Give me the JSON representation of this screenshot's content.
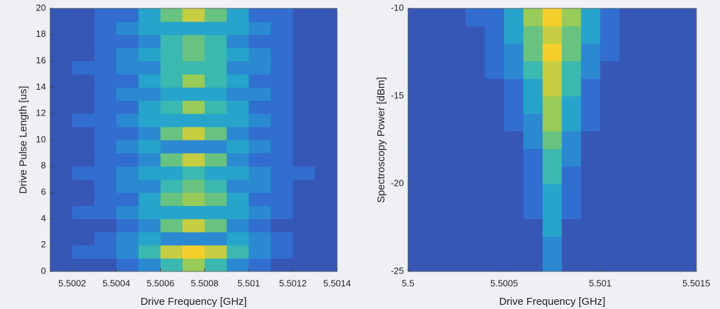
{
  "chart_data": [
    {
      "type": "heatmap",
      "xlabel": "Drive Frequency [GHz]",
      "ylabel": "Drive Pulse Length [us]",
      "xlim": [
        5.5001,
        5.5014
      ],
      "ylim": [
        0,
        20
      ],
      "xticks": [
        5.5002,
        5.5004,
        5.5006,
        5.5008,
        5.501,
        5.5012,
        5.5014
      ],
      "yticks": [
        0,
        2,
        4,
        6,
        8,
        10,
        12,
        14,
        16,
        18,
        20
      ],
      "zlim": [
        0,
        9
      ],
      "colormap": [
        "#3e3f9c",
        "#2f74d6",
        "#24b2c8",
        "#8ccb5c",
        "#f4cf2c"
      ],
      "z": [
        [
          1,
          1,
          1,
          2,
          3,
          5,
          7,
          5,
          3,
          2,
          1,
          1,
          1
        ],
        [
          1,
          2,
          2,
          3,
          5,
          8,
          9,
          8,
          5,
          3,
          2,
          1,
          1
        ],
        [
          1,
          1,
          2,
          3,
          4,
          3,
          3,
          3,
          4,
          3,
          2,
          1,
          1
        ],
        [
          1,
          1,
          1,
          2,
          3,
          6,
          8,
          6,
          3,
          2,
          1,
          1,
          1
        ],
        [
          1,
          2,
          2,
          3,
          4,
          4,
          4,
          4,
          4,
          3,
          2,
          1,
          1
        ],
        [
          1,
          1,
          2,
          2,
          4,
          6,
          7,
          6,
          4,
          2,
          2,
          1,
          1
        ],
        [
          1,
          1,
          2,
          3,
          3,
          5,
          6,
          5,
          3,
          3,
          2,
          1,
          1
        ],
        [
          1,
          2,
          2,
          3,
          4,
          4,
          5,
          4,
          4,
          3,
          2,
          2,
          1
        ],
        [
          1,
          1,
          2,
          2,
          3,
          6,
          8,
          6,
          3,
          2,
          2,
          1,
          1
        ],
        [
          1,
          1,
          2,
          3,
          4,
          3,
          3,
          3,
          4,
          3,
          2,
          1,
          1
        ],
        [
          1,
          1,
          2,
          2,
          3,
          6,
          8,
          6,
          3,
          2,
          2,
          1,
          1
        ],
        [
          1,
          2,
          2,
          3,
          4,
          4,
          4,
          4,
          4,
          3,
          2,
          1,
          1
        ],
        [
          1,
          1,
          2,
          2,
          4,
          5,
          7,
          5,
          4,
          2,
          2,
          1,
          1
        ],
        [
          1,
          1,
          2,
          3,
          3,
          4,
          4,
          4,
          3,
          3,
          2,
          1,
          1
        ],
        [
          1,
          1,
          2,
          2,
          4,
          5,
          7,
          5,
          4,
          2,
          2,
          1,
          1
        ],
        [
          1,
          2,
          2,
          3,
          3,
          5,
          5,
          5,
          3,
          3,
          2,
          1,
          1
        ],
        [
          1,
          1,
          2,
          3,
          4,
          5,
          6,
          5,
          4,
          3,
          2,
          1,
          1
        ],
        [
          1,
          1,
          2,
          2,
          3,
          5,
          6,
          5,
          3,
          2,
          2,
          1,
          1
        ],
        [
          1,
          1,
          2,
          3,
          4,
          4,
          4,
          4,
          4,
          3,
          2,
          1,
          1
        ],
        [
          1,
          1,
          2,
          2,
          4,
          6,
          8,
          6,
          4,
          2,
          2,
          1,
          1
        ]
      ]
    },
    {
      "type": "heatmap",
      "xlabel": "Drive Frequency [GHz]",
      "ylabel": "Spectroscopy Power [dBm]",
      "xlim": [
        5.5,
        5.5015
      ],
      "ylim": [
        -25,
        -10
      ],
      "xticks": [
        5.5,
        5.5005,
        5.501,
        5.5015
      ],
      "yticks": [
        -25,
        -20,
        -15,
        -10
      ],
      "zlim": [
        0,
        9
      ],
      "colormap": [
        "#3e3f9c",
        "#2f74d6",
        "#24b2c8",
        "#8ccb5c",
        "#f4cf2c"
      ],
      "z": [
        [
          1,
          1,
          1,
          1,
          1,
          1,
          1,
          3,
          1,
          1,
          1,
          1,
          1,
          1,
          1
        ],
        [
          1,
          1,
          1,
          1,
          1,
          1,
          1,
          3,
          1,
          1,
          1,
          1,
          1,
          1,
          1
        ],
        [
          1,
          1,
          1,
          1,
          1,
          1,
          1,
          4,
          1,
          1,
          1,
          1,
          1,
          1,
          1
        ],
        [
          1,
          1,
          1,
          1,
          1,
          1,
          2,
          4,
          2,
          1,
          1,
          1,
          1,
          1,
          1
        ],
        [
          1,
          1,
          1,
          1,
          1,
          1,
          2,
          4,
          2,
          1,
          1,
          1,
          1,
          1,
          1
        ],
        [
          1,
          1,
          1,
          1,
          1,
          1,
          2,
          5,
          2,
          1,
          1,
          1,
          1,
          1,
          1
        ],
        [
          1,
          1,
          1,
          1,
          1,
          1,
          2,
          5,
          3,
          1,
          1,
          1,
          1,
          1,
          1
        ],
        [
          1,
          1,
          1,
          1,
          1,
          1,
          3,
          6,
          3,
          1,
          1,
          1,
          1,
          1,
          1
        ],
        [
          1,
          1,
          1,
          1,
          1,
          2,
          3,
          7,
          4,
          2,
          1,
          1,
          1,
          1,
          1
        ],
        [
          1,
          1,
          1,
          1,
          1,
          2,
          4,
          7,
          4,
          2,
          1,
          1,
          1,
          1,
          1
        ],
        [
          1,
          1,
          1,
          1,
          1,
          2,
          4,
          8,
          5,
          2,
          1,
          1,
          1,
          1,
          1
        ],
        [
          1,
          1,
          1,
          1,
          2,
          3,
          5,
          8,
          5,
          3,
          1,
          1,
          1,
          1,
          1
        ],
        [
          1,
          1,
          1,
          1,
          2,
          3,
          6,
          9,
          6,
          3,
          2,
          1,
          1,
          1,
          1
        ],
        [
          1,
          1,
          1,
          1,
          2,
          4,
          6,
          8,
          6,
          4,
          2,
          1,
          1,
          1,
          1
        ],
        [
          1,
          1,
          1,
          2,
          2,
          4,
          7,
          9,
          7,
          4,
          2,
          1,
          1,
          1,
          1
        ]
      ]
    }
  ]
}
